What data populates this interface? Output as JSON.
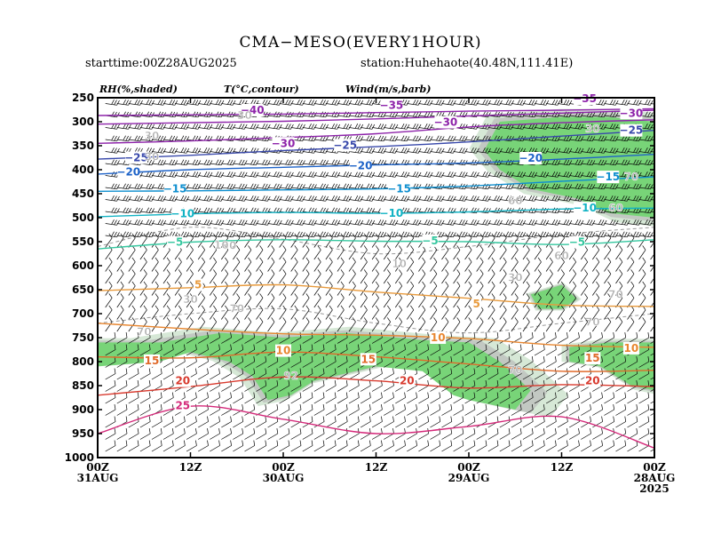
{
  "chart_data": {
    "type": "time-height cross section",
    "title": "CMA−MESO(EVERY1HOUR)",
    "subtitle_left": "starttime:00Z28AUG2025",
    "subtitle_right": "station:Huhehaote(40.48N,111.41E)",
    "legend": {
      "rh": "RH(%,shaded)",
      "temp": "T(°C,contour)",
      "wind": "Wind(m/s,barb)"
    },
    "y_axis": {
      "unit": "hPa",
      "ticks": [
        250,
        300,
        350,
        400,
        450,
        500,
        550,
        600,
        650,
        700,
        750,
        800,
        850,
        900,
        950,
        1000
      ],
      "range": [
        250,
        1000
      ]
    },
    "x_axis": {
      "direction": "reversed (time increases to the left)",
      "range_hours": [
        0,
        72
      ],
      "ticks": [
        {
          "hours": 72,
          "line1": "00Z",
          "line2": "31AUG",
          "line3": ""
        },
        {
          "hours": 60,
          "line1": "12Z",
          "line2": "",
          "line3": ""
        },
        {
          "hours": 48,
          "line1": "00Z",
          "line2": "30AUG",
          "line3": ""
        },
        {
          "hours": 36,
          "line1": "12Z",
          "line2": "",
          "line3": ""
        },
        {
          "hours": 24,
          "line1": "00Z",
          "line2": "29AUG",
          "line3": ""
        },
        {
          "hours": 12,
          "line1": "12Z",
          "line2": "",
          "line3": ""
        },
        {
          "hours": 0,
          "line1": "00Z",
          "line2": "28AUG",
          "line3": "2025"
        }
      ]
    },
    "temperature_isotherms": [
      {
        "t": -40,
        "color": "#8e24aa",
        "p": [
          [
            72,
            287
          ],
          [
            48,
            284
          ],
          [
            36,
            281
          ],
          [
            24,
            278
          ],
          [
            12,
            276
          ],
          [
            0,
            273
          ]
        ],
        "labels": [
          [
            52,
            276
          ]
        ]
      },
      {
        "t": -35,
        "color": "#8e24aa",
        "p": [
          [
            72,
            305
          ],
          [
            60,
            302
          ],
          [
            48,
            299
          ],
          [
            36,
            294
          ],
          [
            24,
            288
          ],
          [
            12,
            282
          ],
          [
            0,
            276
          ]
        ],
        "labels": [
          [
            34,
            266
          ],
          [
            9,
            252
          ]
        ]
      },
      {
        "t": -30,
        "color": "#8e24aa",
        "p": [
          [
            72,
            345
          ],
          [
            60,
            340
          ],
          [
            48,
            333
          ],
          [
            36,
            325
          ],
          [
            24,
            311
          ],
          [
            12,
            302
          ],
          [
            0,
            296
          ]
        ],
        "labels": [
          [
            48,
            345
          ],
          [
            27,
            301
          ],
          [
            3,
            282
          ]
        ]
      },
      {
        "t": -25,
        "color": "#3949ab",
        "p": [
          [
            72,
            378
          ],
          [
            60,
            370
          ],
          [
            48,
            360
          ],
          [
            36,
            352
          ],
          [
            24,
            342
          ],
          [
            12,
            330
          ],
          [
            0,
            318
          ]
        ],
        "labels": [
          [
            67,
            375
          ],
          [
            40,
            349
          ],
          [
            3,
            318
          ]
        ]
      },
      {
        "t": -20,
        "color": "#1e63c8",
        "p": [
          [
            72,
            409
          ],
          [
            60,
            400
          ],
          [
            48,
            395
          ],
          [
            36,
            390
          ],
          [
            24,
            386
          ],
          [
            12,
            378
          ],
          [
            0,
            368
          ]
        ],
        "labels": [
          [
            68,
            405
          ],
          [
            38,
            392
          ],
          [
            16,
            376
          ]
        ]
      },
      {
        "t": -15,
        "color": "#0f8fcf",
        "p": [
          [
            72,
            445
          ],
          [
            60,
            444
          ],
          [
            48,
            442
          ],
          [
            36,
            440
          ],
          [
            24,
            434
          ],
          [
            12,
            424
          ],
          [
            0,
            415
          ]
        ],
        "labels": [
          [
            62,
            440
          ],
          [
            33,
            440
          ],
          [
            6,
            415
          ]
        ]
      },
      {
        "t": -10,
        "color": "#12b3c4",
        "p": [
          [
            72,
            498
          ],
          [
            60,
            492
          ],
          [
            48,
            489
          ],
          [
            36,
            491
          ],
          [
            24,
            488
          ],
          [
            12,
            482
          ],
          [
            0,
            480
          ]
        ],
        "labels": [
          [
            61,
            492
          ],
          [
            34,
            491
          ],
          [
            9,
            480
          ]
        ]
      },
      {
        "t": -5,
        "color": "#35c79f",
        "p": [
          [
            72,
            565
          ],
          [
            60,
            551
          ],
          [
            48,
            546
          ],
          [
            36,
            549
          ],
          [
            24,
            550
          ],
          [
            12,
            556
          ],
          [
            0,
            546
          ]
        ],
        "labels": [
          [
            62,
            551
          ],
          [
            29,
            548
          ],
          [
            10,
            551
          ]
        ]
      },
      {
        "t": 5,
        "color": "#e89a3c",
        "p": [
          [
            72,
            652
          ],
          [
            60,
            646
          ],
          [
            48,
            640
          ],
          [
            36,
            655
          ],
          [
            24,
            668
          ],
          [
            12,
            682
          ],
          [
            0,
            685
          ]
        ],
        "labels": [
          [
            59,
            640
          ],
          [
            23,
            680
          ]
        ]
      },
      {
        "t": 10,
        "color": "#e8862f",
        "p": [
          [
            72,
            720
          ],
          [
            60,
            732
          ],
          [
            48,
            742
          ],
          [
            36,
            745
          ],
          [
            24,
            752
          ],
          [
            12,
            766
          ],
          [
            0,
            770
          ]
        ],
        "labels": [
          [
            48,
            777
          ],
          [
            28,
            750
          ],
          [
            3,
            772
          ]
        ]
      },
      {
        "t": 15,
        "color": "#e06a2a",
        "p": [
          [
            72,
            790
          ],
          [
            60,
            792
          ],
          [
            48,
            780
          ],
          [
            36,
            790
          ],
          [
            24,
            805
          ],
          [
            12,
            820
          ],
          [
            0,
            818
          ]
        ],
        "labels": [
          [
            65,
            798
          ],
          [
            37,
            795
          ],
          [
            8,
            793
          ]
        ]
      },
      {
        "t": 20,
        "color": "#d83a2e",
        "p": [
          [
            72,
            870
          ],
          [
            60,
            852
          ],
          [
            48,
            832
          ],
          [
            36,
            840
          ],
          [
            24,
            855
          ],
          [
            12,
            848
          ],
          [
            0,
            852
          ]
        ],
        "labels": [
          [
            61,
            840
          ],
          [
            32,
            840
          ],
          [
            8,
            840
          ]
        ]
      },
      {
        "t": 25,
        "color": "#d42a7a",
        "p": [
          [
            72,
            950
          ],
          [
            60,
            893
          ],
          [
            48,
            920
          ],
          [
            36,
            950
          ],
          [
            24,
            935
          ],
          [
            12,
            915
          ],
          [
            0,
            980
          ]
        ],
        "labels": [
          [
            61,
            892
          ]
        ]
      }
    ],
    "rh_contour_labels": [
      {
        "value": 30,
        "at": [
          [
            65,
            330
          ],
          [
            53,
            287
          ],
          [
            60,
            670
          ],
          [
            18,
            625
          ],
          [
            8,
            315
          ],
          [
            65,
            373
          ]
        ]
      },
      {
        "value": 60,
        "at": [
          [
            55,
            558
          ],
          [
            18,
            465
          ],
          [
            12,
            580
          ],
          [
            5,
            480
          ]
        ]
      },
      {
        "value": 70,
        "at": [
          [
            66,
            738
          ],
          [
            54,
            690
          ],
          [
            18,
            818
          ],
          [
            8,
            718
          ],
          [
            5,
            660
          ],
          [
            3,
            415
          ]
        ]
      },
      {
        "value": 10,
        "at": [
          [
            33,
            596
          ],
          [
            56,
            557
          ]
        ]
      },
      {
        "value": 92,
        "at": [
          [
            47,
            830
          ]
        ]
      }
    ],
    "rh_shading": {
      "levels": [
        "<60",
        "60-70",
        "70-90",
        ">=90"
      ],
      "colors": [
        "#ffffff",
        "#d6e8d6",
        "#c2c8c2",
        "#78d478"
      ],
      "moist_regions": [
        {
          "level": ">=90",
          "poly": [
            [
              72,
              810
            ],
            [
              64,
              800
            ],
            [
              60,
              780
            ],
            [
              55,
              800
            ],
            [
              52,
              830
            ],
            [
              50,
              880
            ],
            [
              47,
              870
            ],
            [
              44,
              840
            ],
            [
              36,
              810
            ],
            [
              30,
              820
            ],
            [
              26,
              870
            ],
            [
              24,
              880
            ],
            [
              18,
              900
            ],
            [
              16,
              860
            ],
            [
              20,
              800
            ],
            [
              24,
              760
            ],
            [
              30,
              755
            ],
            [
              40,
              740
            ],
            [
              48,
              750
            ],
            [
              56,
              740
            ],
            [
              64,
              760
            ],
            [
              72,
              760
            ]
          ]
        },
        {
          "level": ">=90",
          "poly": [
            [
              12,
              690
            ],
            [
              10,
              670
            ],
            [
              12,
              640
            ],
            [
              16,
              660
            ],
            [
              15,
              690
            ]
          ]
        },
        {
          "level": ">=90",
          "poly": [
            [
              11,
              770
            ],
            [
              6,
              760
            ],
            [
              0,
              760
            ],
            [
              0,
              860
            ],
            [
              3,
              850
            ],
            [
              7,
              810
            ],
            [
              11,
              800
            ]
          ]
        },
        {
          "level": ">=90",
          "poly": [
            [
              20,
              300
            ],
            [
              12,
              290
            ],
            [
              6,
              290
            ],
            [
              0,
              300
            ],
            [
              0,
              500
            ],
            [
              6,
              490
            ],
            [
              10,
              460
            ],
            [
              16,
              440
            ],
            [
              20,
              400
            ],
            [
              22,
              360
            ]
          ]
        }
      ]
    }
  }
}
